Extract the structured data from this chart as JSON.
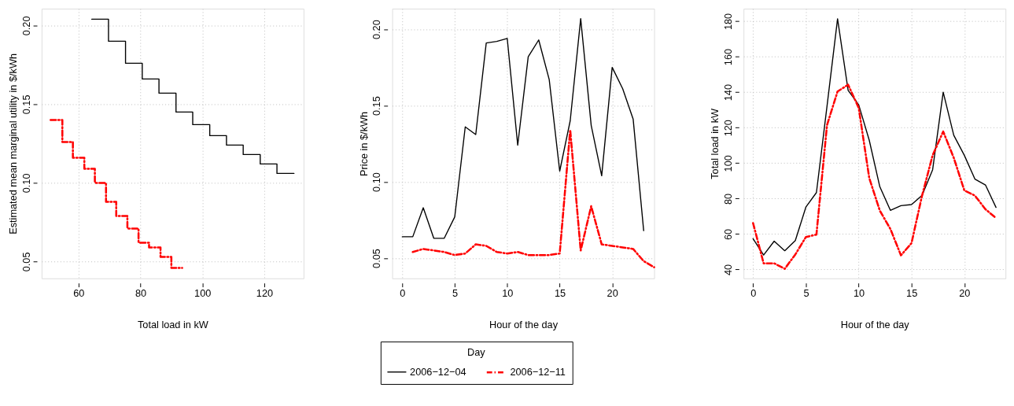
{
  "chart_data": [
    {
      "type": "step",
      "xlabel": "Total load in kW",
      "ylabel": "Estimated mean marginal utility in $/kWh",
      "xlim": [
        48.1,
        132.7
      ],
      "ylim": [
        0.0393,
        0.2107
      ],
      "xticks": [
        60,
        80,
        100,
        120
      ],
      "yticks": [
        {
          "value": 0.05,
          "label": "0.05"
        },
        {
          "value": 0.1,
          "label": "0.10"
        },
        {
          "value": 0.15,
          "label": "0.15"
        },
        {
          "value": 0.2,
          "label": "0.20"
        }
      ],
      "grid": true,
      "legend": "bottom",
      "legend_title": "Day",
      "series": [
        {
          "name": "2006−12−04",
          "color": "#000000",
          "line_style": "solid",
          "x": [
            64.3,
            69.7,
            75.2,
            80.6,
            86.0,
            91.5,
            96.9,
            102.4,
            107.8,
            113.2,
            118.7,
            124.1,
            129.6
          ],
          "values": [
            0.204,
            0.19,
            0.176,
            0.166,
            0.157,
            0.145,
            0.137,
            0.13,
            0.124,
            0.118,
            0.112,
            0.106,
            0.106
          ]
        },
        {
          "name": "2006−12−11",
          "color": "#ff0000",
          "line_style": "dashed",
          "x": [
            51.0,
            54.8,
            58.2,
            61.9,
            65.3,
            68.9,
            72.2,
            75.8,
            79.4,
            82.8,
            86.5,
            90.0,
            93.5
          ],
          "values": [
            0.14,
            0.126,
            0.116,
            0.109,
            0.1,
            0.088,
            0.079,
            0.071,
            0.062,
            0.059,
            0.053,
            0.046,
            0.046
          ]
        }
      ]
    },
    {
      "type": "line",
      "xlabel": "Hour of the day",
      "ylabel": "Price in $/kWh",
      "xlim": [
        -0.96,
        24
      ],
      "ylim": [
        0.0367,
        0.2135
      ],
      "xticks": [
        0,
        5,
        10,
        15,
        20
      ],
      "yticks": [
        {
          "value": 0.05,
          "label": "0.05"
        },
        {
          "value": 0.1,
          "label": "0.10"
        },
        {
          "value": 0.15,
          "label": "0.15"
        },
        {
          "value": 0.2,
          "label": "0.20"
        }
      ],
      "grid": true,
      "legend": "bottom",
      "series": [
        {
          "name": "2006−12−04",
          "color": "#000000",
          "line_style": "solid",
          "x": [
            0,
            1,
            2,
            3,
            4,
            5,
            6,
            7,
            8,
            9,
            10,
            11,
            12,
            13,
            14,
            15,
            16,
            17,
            18,
            19,
            20,
            21,
            22,
            23
          ],
          "values": [
            0.064,
            0.064,
            0.083,
            0.063,
            0.063,
            0.077,
            0.136,
            0.131,
            0.191,
            0.192,
            0.194,
            0.124,
            0.182,
            0.193,
            0.167,
            0.107,
            0.14,
            0.207,
            0.137,
            0.104,
            0.175,
            0.161,
            0.141,
            0.068
          ]
        },
        {
          "name": "2006−12−11",
          "color": "#ff0000",
          "line_style": "dashed",
          "x": [
            1,
            2,
            3,
            4,
            5,
            6,
            7,
            8,
            9,
            10,
            11,
            12,
            13,
            14,
            15,
            16,
            17,
            18,
            19,
            20,
            21,
            22,
            23,
            24
          ],
          "values": [
            0.054,
            0.056,
            0.055,
            0.054,
            0.052,
            0.053,
            0.059,
            0.058,
            0.054,
            0.053,
            0.054,
            0.052,
            0.052,
            0.052,
            0.053,
            0.134,
            0.055,
            0.084,
            0.059,
            0.058,
            0.057,
            0.056,
            0.048,
            0.044
          ]
        }
      ]
    },
    {
      "type": "line",
      "xlabel": "Hour of the day",
      "ylabel": "Total load in kW",
      "xlim": [
        -0.9,
        23.9
      ],
      "ylim": [
        35.0,
        187.1
      ],
      "xticks": [
        0,
        5,
        10,
        15,
        20
      ],
      "yticks": [
        40,
        60,
        80,
        100,
        120,
        140,
        160,
        180
      ],
      "grid": true,
      "legend": "bottom",
      "series": [
        {
          "name": "2006−12−04",
          "color": "#000000",
          "line_style": "solid",
          "x": [
            0,
            1,
            2,
            3,
            4,
            5,
            6,
            7,
            8,
            9,
            10,
            11,
            12,
            13,
            14,
            15,
            16,
            17,
            18,
            19,
            20,
            21,
            22,
            23
          ],
          "values": [
            57.4,
            48.2,
            56.0,
            50.6,
            56.3,
            75.2,
            83.4,
            132,
            181.4,
            141,
            132.9,
            112.9,
            86.7,
            73.4,
            76,
            76.6,
            81.8,
            96.3,
            140,
            115.7,
            104.4,
            91,
            87.7,
            75
          ]
        },
        {
          "name": "2006−12−11",
          "color": "#ff0000",
          "line_style": "dashed",
          "x": [
            0,
            1,
            2,
            3,
            4,
            5,
            6,
            7,
            8,
            9,
            10,
            11,
            12,
            13,
            14,
            15,
            16,
            17,
            18,
            19,
            20,
            21,
            22,
            23
          ],
          "values": [
            66.2,
            43.5,
            43.5,
            40.4,
            48.5,
            58.3,
            59.7,
            121.4,
            140.4,
            144.2,
            131.2,
            91.6,
            73.2,
            62.9,
            48,
            54.9,
            81.7,
            104.4,
            117.8,
            103,
            84.6,
            81.7,
            74,
            69
          ]
        }
      ]
    }
  ]
}
